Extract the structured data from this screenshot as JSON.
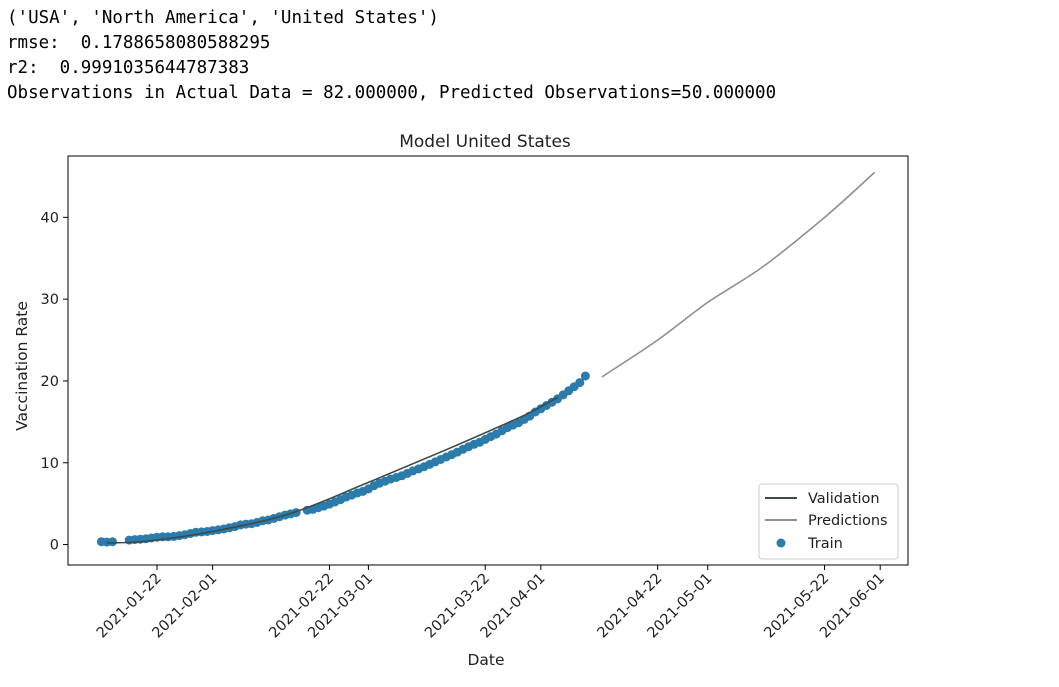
{
  "output_lines": [
    "('USA', 'North America', 'United States')",
    "rmse:  0.1788658080588295",
    "r2:  0.9991035644787383",
    "Observations in Actual Data = 82.000000, Predicted Observations=50.000000"
  ],
  "chart_data": {
    "type": "line",
    "title": "Model United States",
    "xlabel": "Date",
    "ylabel": "Vaccination Rate",
    "x_range": [
      "2021-01-06",
      "2021-06-06"
    ],
    "ylim": [
      -2.5,
      47.5
    ],
    "x_ticks": [
      "2021-01-22",
      "2021-02-01",
      "2021-02-22",
      "2021-03-01",
      "2021-03-22",
      "2021-04-01",
      "2021-04-22",
      "2021-05-01",
      "2021-05-22",
      "2021-06-01"
    ],
    "y_ticks": [
      0,
      10,
      20,
      30,
      40
    ],
    "grid": false,
    "legend_position": "lower-right",
    "legend": [
      "Validation",
      "Predictions",
      "Train"
    ],
    "series": [
      {
        "name": "Validation",
        "type": "line",
        "color": "#3d4a4a",
        "x": [
          "2021-01-13",
          "2021-01-20",
          "2021-02-01",
          "2021-02-15",
          "2021-03-01",
          "2021-03-15",
          "2021-03-29",
          "2021-04-04"
        ],
        "y": [
          0.2,
          0.4,
          1.6,
          3.8,
          7.6,
          11.6,
          15.8,
          18.0
        ]
      },
      {
        "name": "Predictions",
        "type": "line",
        "color": "#8f8f8f",
        "x": [
          "2021-04-12",
          "2021-04-22",
          "2021-05-01",
          "2021-05-11",
          "2021-05-22",
          "2021-05-31"
        ],
        "y": [
          20.5,
          25.0,
          29.6,
          34.0,
          40.0,
          45.5
        ]
      },
      {
        "name": "Train",
        "type": "scatter",
        "color": "#2b7bab",
        "x": [
          "2021-01-12",
          "2021-01-13",
          "2021-01-14",
          "2021-01-17",
          "2021-01-18",
          "2021-01-19",
          "2021-01-20",
          "2021-01-21",
          "2021-01-22",
          "2021-01-23",
          "2021-01-24",
          "2021-01-25",
          "2021-01-26",
          "2021-01-27",
          "2021-01-28",
          "2021-01-29",
          "2021-01-30",
          "2021-01-31",
          "2021-02-01",
          "2021-02-02",
          "2021-02-03",
          "2021-02-04",
          "2021-02-05",
          "2021-02-06",
          "2021-02-07",
          "2021-02-08",
          "2021-02-09",
          "2021-02-10",
          "2021-02-11",
          "2021-02-12",
          "2021-02-13",
          "2021-02-14",
          "2021-02-15",
          "2021-02-16",
          "2021-02-18",
          "2021-02-19",
          "2021-02-20",
          "2021-02-21",
          "2021-02-22",
          "2021-02-23",
          "2021-02-24",
          "2021-02-25",
          "2021-02-26",
          "2021-02-27",
          "2021-02-28",
          "2021-03-01",
          "2021-03-02",
          "2021-03-03",
          "2021-03-04",
          "2021-03-05",
          "2021-03-06",
          "2021-03-07",
          "2021-03-08",
          "2021-03-09",
          "2021-03-10",
          "2021-03-11",
          "2021-03-12",
          "2021-03-13",
          "2021-03-14",
          "2021-03-15",
          "2021-03-16",
          "2021-03-17",
          "2021-03-18",
          "2021-03-19",
          "2021-03-20",
          "2021-03-21",
          "2021-03-22",
          "2021-03-23",
          "2021-03-24",
          "2021-03-25",
          "2021-03-26",
          "2021-03-27",
          "2021-03-28",
          "2021-03-29",
          "2021-03-30",
          "2021-03-31",
          "2021-04-01",
          "2021-04-02",
          "2021-04-03",
          "2021-04-04",
          "2021-04-05",
          "2021-04-06",
          "2021-04-07",
          "2021-04-08",
          "2021-04-09"
        ],
        "y": [
          0.35,
          0.3,
          0.35,
          0.55,
          0.6,
          0.65,
          0.7,
          0.8,
          0.9,
          0.95,
          0.95,
          1.0,
          1.1,
          1.2,
          1.35,
          1.5,
          1.55,
          1.6,
          1.7,
          1.8,
          1.9,
          2.05,
          2.2,
          2.4,
          2.5,
          2.55,
          2.7,
          2.9,
          3.0,
          3.2,
          3.4,
          3.6,
          3.75,
          3.9,
          4.2,
          4.3,
          4.5,
          4.7,
          4.95,
          5.2,
          5.5,
          5.8,
          6.05,
          6.3,
          6.5,
          6.8,
          7.2,
          7.5,
          7.75,
          8.0,
          8.2,
          8.4,
          8.7,
          9.0,
          9.25,
          9.5,
          9.8,
          10.1,
          10.4,
          10.7,
          11.0,
          11.3,
          11.65,
          11.95,
          12.25,
          12.5,
          12.85,
          13.2,
          13.5,
          13.9,
          14.3,
          14.6,
          14.9,
          15.3,
          15.7,
          16.2,
          16.6,
          17.0,
          17.4,
          17.8,
          18.3,
          18.8,
          19.3,
          19.8,
          20.6
        ]
      }
    ]
  }
}
